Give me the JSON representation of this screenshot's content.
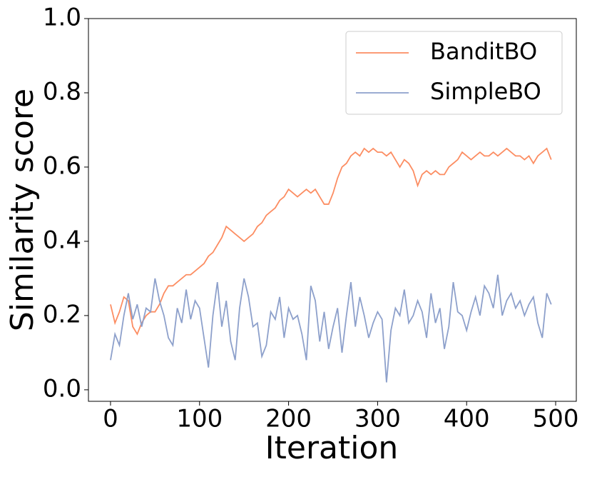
{
  "chart_data": {
    "type": "line",
    "xlabel": "Iteration",
    "ylabel": "Similarity score",
    "x": [
      0,
      5,
      10,
      15,
      20,
      25,
      30,
      35,
      40,
      45,
      50,
      55,
      60,
      65,
      70,
      75,
      80,
      85,
      90,
      95,
      100,
      105,
      110,
      115,
      120,
      125,
      130,
      135,
      140,
      145,
      150,
      155,
      160,
      165,
      170,
      175,
      180,
      185,
      190,
      195,
      200,
      205,
      210,
      215,
      220,
      225,
      230,
      235,
      240,
      245,
      250,
      255,
      260,
      265,
      270,
      275,
      280,
      285,
      290,
      295,
      300,
      305,
      310,
      315,
      320,
      325,
      330,
      335,
      340,
      345,
      350,
      355,
      360,
      365,
      370,
      375,
      380,
      385,
      390,
      395,
      400,
      405,
      410,
      415,
      420,
      425,
      430,
      435,
      440,
      445,
      450,
      455,
      460,
      465,
      470,
      475,
      480,
      485,
      490,
      495
    ],
    "series": [
      {
        "name": "BanditBO",
        "color": "#fc8d62",
        "values": [
          0.23,
          0.18,
          0.21,
          0.25,
          0.24,
          0.17,
          0.15,
          0.18,
          0.2,
          0.21,
          0.21,
          0.23,
          0.26,
          0.28,
          0.28,
          0.29,
          0.3,
          0.31,
          0.31,
          0.32,
          0.33,
          0.34,
          0.36,
          0.37,
          0.39,
          0.41,
          0.44,
          0.43,
          0.42,
          0.41,
          0.4,
          0.41,
          0.42,
          0.44,
          0.45,
          0.47,
          0.48,
          0.49,
          0.51,
          0.52,
          0.54,
          0.53,
          0.52,
          0.53,
          0.54,
          0.53,
          0.54,
          0.52,
          0.5,
          0.5,
          0.53,
          0.57,
          0.6,
          0.61,
          0.63,
          0.64,
          0.63,
          0.65,
          0.64,
          0.65,
          0.64,
          0.64,
          0.63,
          0.64,
          0.62,
          0.6,
          0.62,
          0.61,
          0.59,
          0.55,
          0.58,
          0.59,
          0.58,
          0.59,
          0.58,
          0.58,
          0.6,
          0.61,
          0.62,
          0.64,
          0.63,
          0.62,
          0.63,
          0.64,
          0.63,
          0.63,
          0.64,
          0.63,
          0.64,
          0.65,
          0.64,
          0.63,
          0.63,
          0.62,
          0.63,
          0.61,
          0.63,
          0.64,
          0.65,
          0.62
        ]
      },
      {
        "name": "SimpleBO",
        "color": "#8da0cb",
        "values": [
          0.08,
          0.15,
          0.12,
          0.2,
          0.26,
          0.19,
          0.23,
          0.17,
          0.22,
          0.21,
          0.3,
          0.24,
          0.2,
          0.14,
          0.12,
          0.22,
          0.18,
          0.27,
          0.19,
          0.24,
          0.22,
          0.14,
          0.06,
          0.2,
          0.29,
          0.17,
          0.24,
          0.13,
          0.08,
          0.22,
          0.3,
          0.25,
          0.17,
          0.18,
          0.09,
          0.12,
          0.21,
          0.19,
          0.25,
          0.14,
          0.22,
          0.19,
          0.2,
          0.15,
          0.08,
          0.28,
          0.24,
          0.13,
          0.21,
          0.11,
          0.17,
          0.22,
          0.1,
          0.2,
          0.29,
          0.17,
          0.25,
          0.2,
          0.14,
          0.18,
          0.21,
          0.19,
          0.02,
          0.16,
          0.22,
          0.2,
          0.27,
          0.18,
          0.2,
          0.24,
          0.21,
          0.14,
          0.26,
          0.18,
          0.22,
          0.11,
          0.17,
          0.29,
          0.21,
          0.2,
          0.16,
          0.21,
          0.25,
          0.2,
          0.28,
          0.26,
          0.22,
          0.31,
          0.2,
          0.24,
          0.26,
          0.22,
          0.24,
          0.2,
          0.23,
          0.25,
          0.18,
          0.14,
          0.26,
          0.23
        ]
      }
    ],
    "xlim": [
      -24.8,
      523.2
    ],
    "xticks": [
      0,
      100,
      200,
      300,
      400,
      500
    ],
    "ylim": [
      -0.031,
      1.0
    ],
    "yticks": [
      {
        "value": 0,
        "label": "0.0"
      },
      0.2,
      0.4,
      0.6,
      0.8,
      {
        "value": 1,
        "label": "1.0"
      }
    ],
    "legend": "upper right",
    "grid": false
  }
}
